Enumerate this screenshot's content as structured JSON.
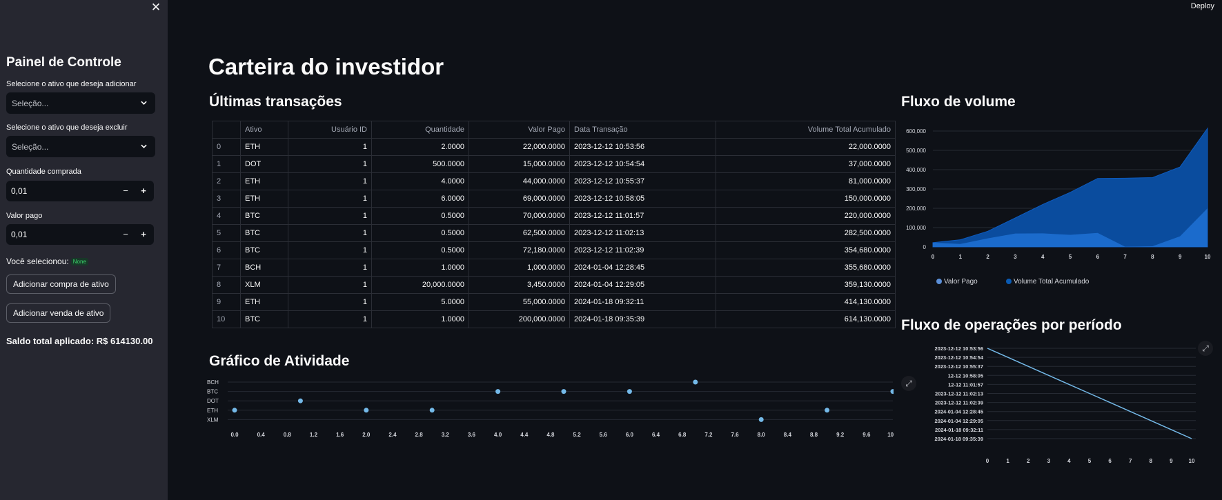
{
  "sidebar": {
    "title": "Painel de Controle",
    "add_label": "Selecione o ativo que deseja adicionar",
    "add_placeholder": "Seleção...",
    "remove_label": "Selecione o ativo que deseja excluir",
    "remove_placeholder": "Seleção...",
    "qty_label": "Quantidade comprada",
    "qty_value": "0,01",
    "paid_label": "Valor pago",
    "paid_value": "0,01",
    "minus": "−",
    "plus": "+",
    "selected_label": "Você selecionou:",
    "selected_badge": "None",
    "buy_button": "Adicionar compra de ativo",
    "sell_button": "Adicionar venda de ativo",
    "total": "Saldo total aplicado: R$ 614130.00"
  },
  "header": {
    "deploy": "Deploy"
  },
  "main": {
    "title": "Carteira do investidor",
    "table_title": "Últimas transações",
    "activity_title": "Gráfico de Atividade",
    "volume_title": "Fluxo de volume",
    "ops_title": "Fluxo de operações por período"
  },
  "table": {
    "columns": [
      "",
      "Ativo",
      "Usuário ID",
      "Quantidade",
      "Valor Pago",
      "Data Transação",
      "Volume Total Acumulado"
    ],
    "rows": [
      [
        "0",
        "ETH",
        "1",
        "2.0000",
        "22,000.0000",
        "2023-12-12 10:53:56",
        "22,000.0000"
      ],
      [
        "1",
        "DOT",
        "1",
        "500.0000",
        "15,000.0000",
        "2023-12-12 10:54:54",
        "37,000.0000"
      ],
      [
        "2",
        "ETH",
        "1",
        "4.0000",
        "44,000.0000",
        "2023-12-12 10:55:37",
        "81,000.0000"
      ],
      [
        "3",
        "ETH",
        "1",
        "6.0000",
        "69,000.0000",
        "2023-12-12 10:58:05",
        "150,000.0000"
      ],
      [
        "4",
        "BTC",
        "1",
        "0.5000",
        "70,000.0000",
        "2023-12-12 11:01:57",
        "220,000.0000"
      ],
      [
        "5",
        "BTC",
        "1",
        "0.5000",
        "62,500.0000",
        "2023-12-12 11:02:13",
        "282,500.0000"
      ],
      [
        "6",
        "BTC",
        "1",
        "0.5000",
        "72,180.0000",
        "2023-12-12 11:02:39",
        "354,680.0000"
      ],
      [
        "7",
        "BCH",
        "1",
        "1.0000",
        "1,000.0000",
        "2024-01-04 12:28:45",
        "355,680.0000"
      ],
      [
        "8",
        "XLM",
        "1",
        "20,000.0000",
        "3,450.0000",
        "2024-01-04 12:29:05",
        "359,130.0000"
      ],
      [
        "9",
        "ETH",
        "1",
        "5.0000",
        "55,000.0000",
        "2024-01-18 09:32:11",
        "414,130.0000"
      ],
      [
        "10",
        "BTC",
        "1",
        "1.0000",
        "200,000.0000",
        "2024-01-18 09:35:39",
        "614,130.0000"
      ]
    ]
  },
  "colors": {
    "accent": "#74b9e8",
    "area_dark": "#0a4c9e",
    "area_light": "#1d6fd0",
    "badge": "#3dd56d"
  },
  "icons": {
    "close": "close-icon",
    "chevron": "chevron-down-icon",
    "expand": "expand-icon"
  },
  "chart_data": [
    {
      "type": "scatter",
      "title": "Gráfico de Atividade",
      "y_categories": [
        "BCH",
        "BTC",
        "DOT",
        "ETH",
        "XLM"
      ],
      "points": [
        {
          "x": 0,
          "y": "ETH"
        },
        {
          "x": 1,
          "y": "DOT"
        },
        {
          "x": 2,
          "y": "ETH"
        },
        {
          "x": 3,
          "y": "ETH"
        },
        {
          "x": 4,
          "y": "BTC"
        },
        {
          "x": 5,
          "y": "BTC"
        },
        {
          "x": 6,
          "y": "BTC"
        },
        {
          "x": 7,
          "y": "BCH"
        },
        {
          "x": 8,
          "y": "XLM"
        },
        {
          "x": 9,
          "y": "ETH"
        },
        {
          "x": 10,
          "y": "BTC"
        }
      ],
      "x_ticks": [
        "0.0",
        "0.4",
        "0.8",
        "1.2",
        "1.6",
        "2.0",
        "2.4",
        "2.8",
        "3.2",
        "3.6",
        "4.0",
        "4.4",
        "4.8",
        "5.2",
        "5.6",
        "6.0",
        "6.4",
        "6.8",
        "7.2",
        "7.6",
        "8.0",
        "8.4",
        "8.8",
        "9.2",
        "9.6",
        "10.0"
      ],
      "xlim": [
        0,
        10
      ]
    },
    {
      "type": "area",
      "title": "Fluxo de volume",
      "x": [
        0,
        1,
        2,
        3,
        4,
        5,
        6,
        7,
        8,
        9,
        10
      ],
      "series": [
        {
          "name": "Valor Pago",
          "values": [
            22000,
            15000,
            44000,
            69000,
            70000,
            62500,
            72180,
            1000,
            3450,
            55000,
            200000
          ]
        },
        {
          "name": "Volume Total Acumulado",
          "values": [
            22000,
            37000,
            81000,
            150000,
            220000,
            282500,
            354680,
            355680,
            359130,
            414130,
            614130
          ]
        }
      ],
      "y_ticks": [
        "0",
        "100,000",
        "200,000",
        "300,000",
        "400,000",
        "500,000",
        "600,000"
      ],
      "ylim": [
        0,
        600000
      ],
      "legend": "bottom"
    },
    {
      "type": "line",
      "title": "Fluxo de operações por período",
      "x": [
        0,
        1,
        2,
        3,
        4,
        5,
        6,
        7,
        8,
        9,
        10
      ],
      "y_categories": [
        "2023-12-12 10:53:56",
        "2023-12-12 10:54:54",
        "2023-12-12 10:55:37",
        "2023-12-12 10:58:05",
        "2023-12-12 11:01:57",
        "2023-12-12 11:02:13",
        "2023-12-12 11:02:39",
        "2024-01-04 12:28:45",
        "2024-01-04 12:29:05",
        "2024-01-18 09:32:11",
        "2024-01-18 09:35:39"
      ],
      "y_tick_labels": [
        "2023-12-12 10:53:56",
        "2023-12-12 10:54:54",
        "2023-12-12 10:55:37",
        "12-12 10:58:05",
        "12-12 11:01:57",
        "2023-12-12 11:02:13",
        "2023-12-12 11:02:39",
        "2024-01-04 12:28:45",
        "2024-01-04 12:29:05",
        "2024-01-18 09:32:11",
        "2024-01-18 09:35:39"
      ],
      "x_ticks": [
        "0",
        "1",
        "2",
        "3",
        "4",
        "5",
        "6",
        "7",
        "8",
        "9",
        "10"
      ]
    }
  ]
}
